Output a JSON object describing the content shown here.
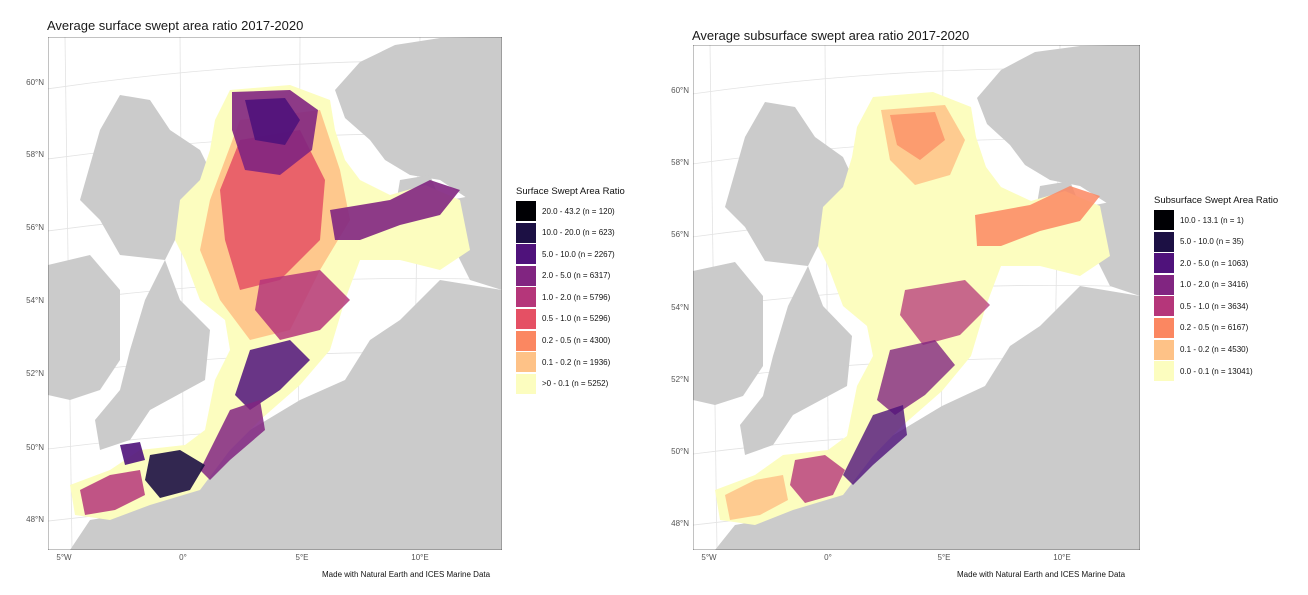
{
  "maps": [
    {
      "title": "Average surface swept area ratio 2017-2020",
      "caption": "Made with Natural Earth and ICES Marine Data",
      "legend": {
        "title": "Surface Swept Area Ratio",
        "entries": [
          {
            "label": "20.0 - 43.2 (n = 120)",
            "color": "#000004"
          },
          {
            "label": "10.0 - 20.0 (n = 623)",
            "color": "#1c1044"
          },
          {
            "label": "5.0 - 10.0 (n = 2267)",
            "color": "#4f127b"
          },
          {
            "label": "2.0 - 5.0 (n = 6317)",
            "color": "#812581"
          },
          {
            "label": "1.0 - 2.0 (n = 5796)",
            "color": "#b5367a"
          },
          {
            "label": "0.5 - 1.0 (n = 5296)",
            "color": "#e55064"
          },
          {
            "label": "0.2 - 0.5 (n = 4300)",
            "color": "#fb8761"
          },
          {
            "label": "0.1 - 0.2 (n = 1936)",
            "color": "#fec287"
          },
          {
            "label": ">0 - 0.1 (n = 5252)",
            "color": "#fcfdbf"
          }
        ]
      },
      "y_ticks": [
        "60°N",
        "58°N",
        "56°N",
        "54°N",
        "52°N",
        "50°N",
        "48°N"
      ],
      "x_ticks": [
        "5°W",
        "0°",
        "5°E",
        "10°E"
      ]
    },
    {
      "title": "Average subsurface swept area ratio 2017-2020",
      "caption": "Made with Natural Earth and ICES Marine Data",
      "legend": {
        "title": "Subsurface Swept Area Ratio",
        "entries": [
          {
            "label": "10.0 - 13.1 (n = 1)",
            "color": "#000004"
          },
          {
            "label": "5.0 - 10.0 (n = 35)",
            "color": "#1c1044"
          },
          {
            "label": "2.0 - 5.0 (n = 1063)",
            "color": "#4f127b"
          },
          {
            "label": "1.0 - 2.0 (n = 3416)",
            "color": "#812581"
          },
          {
            "label": "0.5 - 1.0 (n = 3634)",
            "color": "#b5367a"
          },
          {
            "label": "0.2 - 0.5 (n = 6167)",
            "color": "#fb8761"
          },
          {
            "label": "0.1 - 0.2 (n = 4530)",
            "color": "#fec287"
          },
          {
            "label": "0.0 - 0.1 (n = 13041)",
            "color": "#fcfdbf"
          }
        ]
      },
      "y_ticks": [
        "60°N",
        "58°N",
        "56°N",
        "54°N",
        "52°N",
        "50°N",
        "48°N"
      ],
      "x_ticks": [
        "5°W",
        "0°",
        "5°E",
        "10°E"
      ]
    }
  ],
  "colors": {
    "land": "#cbcbcb",
    "sea": "#ffffff",
    "graticule": "#e3e3e3",
    "border": "#a9a9a9"
  }
}
